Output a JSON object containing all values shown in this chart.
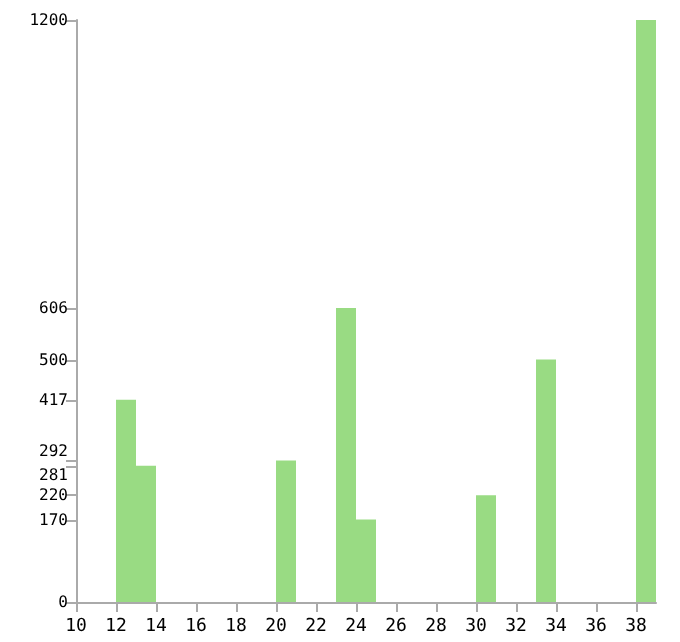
{
  "chart_data": {
    "type": "histogram",
    "bins": [
      10,
      11,
      12,
      13,
      14,
      15,
      16,
      17,
      18,
      19,
      20,
      21,
      22,
      23,
      24,
      25,
      26,
      27,
      28,
      29,
      30,
      31,
      32,
      33,
      34,
      35,
      36,
      37,
      38,
      39
    ],
    "values": [
      0,
      0,
      417,
      281,
      0,
      0,
      0,
      0,
      0,
      0,
      292,
      0,
      0,
      606,
      170,
      0,
      0,
      0,
      0,
      0,
      220,
      0,
      0,
      500,
      0,
      0,
      0,
      0,
      1200
    ],
    "color": "#99db83",
    "xlim": [
      10,
      39
    ],
    "xticks": [
      10,
      12,
      14,
      16,
      18,
      20,
      22,
      24,
      26,
      28,
      30,
      32,
      34,
      36,
      38
    ],
    "ylim": [
      0,
      1200
    ],
    "yticks": [
      0,
      170,
      220,
      281,
      292,
      417,
      500,
      606,
      1200
    ],
    "grid": false
  }
}
